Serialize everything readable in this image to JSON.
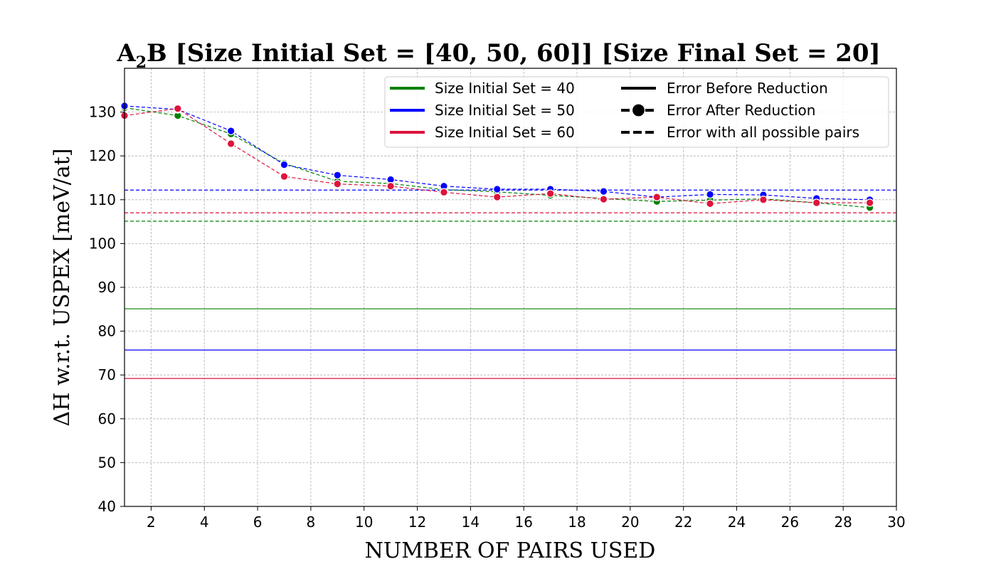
{
  "chart_data": {
    "type": "line",
    "title": {
      "before_sub": "A",
      "sub": "2",
      "after_sub": "B [Size Initial Set = [40, 50, 60]] [Size Final Set = 20]"
    },
    "xlabel": "NUMBER OF PAIRS USED",
    "ylabel": "ΔH w.r.t. USPEX [meV/at]",
    "xlim": [
      1,
      30
    ],
    "ylim": [
      40,
      140
    ],
    "xticks": [
      2,
      4,
      6,
      8,
      10,
      12,
      14,
      16,
      18,
      20,
      22,
      24,
      26,
      28,
      30
    ],
    "yticks": [
      40,
      50,
      60,
      70,
      80,
      90,
      100,
      110,
      120,
      130
    ],
    "grid": true,
    "legend_position": "top-right",
    "x": [
      1,
      3,
      5,
      7,
      9,
      11,
      13,
      15,
      17,
      19,
      21,
      23,
      25,
      27,
      29
    ],
    "series": [
      {
        "name": "Size Initial Set = 40",
        "color": "#008000",
        "error_before_reduction": 85.1,
        "error_all_pairs": 105.1,
        "values": [
          131.0,
          129.2,
          125.0,
          118.3,
          114.2,
          113.7,
          112.3,
          111.8,
          111.0,
          110.3,
          109.6,
          109.9,
          110.2,
          109.3,
          108.2
        ]
      },
      {
        "name": "Size Initial Set = 50",
        "color": "#0000ff",
        "error_before_reduction": 75.7,
        "error_all_pairs": 112.2,
        "values": [
          131.4,
          130.6,
          125.7,
          118.0,
          115.6,
          114.6,
          113.1,
          112.4,
          112.4,
          111.9,
          110.6,
          111.2,
          111.1,
          110.3,
          110.0
        ]
      },
      {
        "name": "Size Initial Set = 60",
        "color": "#dc143c",
        "error_before_reduction": 69.2,
        "error_all_pairs": 107.0,
        "values": [
          129.2,
          130.8,
          122.8,
          115.3,
          113.6,
          113.1,
          111.7,
          110.6,
          111.4,
          110.1,
          110.6,
          109.1,
          110.0,
          109.3,
          109.3
        ]
      }
    ],
    "style_legend": [
      "Error Before Reduction",
      "Error After Reduction",
      "Error with all possible pairs"
    ]
  }
}
